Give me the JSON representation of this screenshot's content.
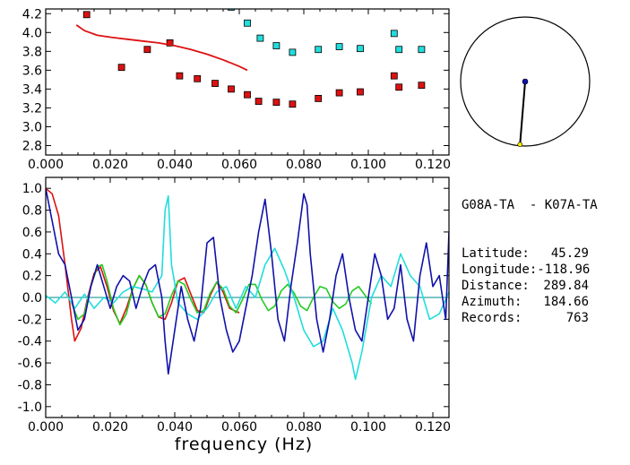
{
  "colors": {
    "red": "#dd1111",
    "cyan": "#22dddd",
    "blue": "#1111aa",
    "green": "#22cc22",
    "zero_line": "#008888"
  },
  "info": {
    "pair": "G08A-TA  - K07A-TA",
    "rows": [
      {
        "label": "Latitude:",
        "value": "45.29"
      },
      {
        "label": "Longitude:",
        "value": "-118.96"
      },
      {
        "label": "Distance:",
        "value": "289.84"
      },
      {
        "label": "Azimuth:",
        "value": "184.66"
      },
      {
        "label": "Records:",
        "value": "763"
      }
    ]
  },
  "azimuth_dial": {
    "azimuth_deg": 184.66,
    "distance_fraction": 0.98
  },
  "chart_data": [
    {
      "type": "scatter",
      "title": "",
      "xlabel": "",
      "ylabel": "",
      "xlim": [
        0.0,
        0.125
      ],
      "ylim": [
        2.7,
        4.25
      ],
      "x_ticks": [
        "0.000",
        "0.020",
        "0.040",
        "0.060",
        "0.080",
        "0.100",
        "0.120"
      ],
      "y_ticks": [
        "2.8",
        "3.0",
        "3.2",
        "3.4",
        "3.6",
        "3.8",
        "4.0",
        "4.2"
      ],
      "series": [
        {
          "color": "red",
          "marker": "square",
          "x": [
            0.0127,
            0.0235,
            0.0315,
            0.0385,
            0.0415,
            0.047,
            0.0525,
            0.0575,
            0.0625,
            0.066,
            0.0715,
            0.0765,
            0.0845,
            0.091,
            0.0975,
            0.108,
            0.1095,
            0.1165
          ],
          "y": [
            4.19,
            3.63,
            3.82,
            3.89,
            3.54,
            3.51,
            3.46,
            3.4,
            3.34,
            3.27,
            3.26,
            3.24,
            3.3,
            3.36,
            3.37,
            3.54,
            3.42,
            3.44
          ]
        },
        {
          "color": "cyan",
          "marker": "square",
          "x": [
            0.0575,
            0.0625,
            0.0665,
            0.0715,
            0.0765,
            0.0845,
            0.091,
            0.0975,
            0.108,
            0.1095,
            0.1165
          ],
          "y": [
            4.27,
            4.1,
            3.94,
            3.86,
            3.79,
            3.82,
            3.85,
            3.83,
            3.99,
            3.82,
            3.82
          ]
        },
        {
          "color": "red",
          "marker": "line",
          "x": [
            0.0095,
            0.012,
            0.016,
            0.02,
            0.025,
            0.03,
            0.035,
            0.04,
            0.045,
            0.05,
            0.055,
            0.06,
            0.0625
          ],
          "y": [
            4.08,
            4.02,
            3.97,
            3.95,
            3.93,
            3.91,
            3.89,
            3.86,
            3.82,
            3.77,
            3.71,
            3.64,
            3.6
          ]
        }
      ]
    },
    {
      "type": "line",
      "title": "",
      "xlabel": "frequency (Hz)",
      "ylabel": "",
      "xlim": [
        0.0,
        0.125
      ],
      "ylim": [
        -1.1,
        1.1
      ],
      "x_ticks": [
        "0.000",
        "0.020",
        "0.040",
        "0.060",
        "0.080",
        "0.100",
        "0.120"
      ],
      "y_ticks": [
        "1.0",
        "0.8",
        "0.6",
        "0.4",
        "0.2",
        "0.0",
        "-0.2",
        "-0.4",
        "-0.6",
        "-0.8",
        "-1.0"
      ],
      "series": [
        {
          "color": "red",
          "x": [
            0.0,
            0.002,
            0.004,
            0.006,
            0.008,
            0.009,
            0.011,
            0.013,
            0.015,
            0.017,
            0.019,
            0.021,
            0.023,
            0.025,
            0.027,
            0.029,
            0.031,
            0.033,
            0.035,
            0.037,
            0.039,
            0.041,
            0.043,
            0.045,
            0.047,
            0.049,
            0.051,
            0.053,
            0.055,
            0.057,
            0.06
          ],
          "y": [
            1.0,
            0.95,
            0.75,
            0.3,
            -0.2,
            -0.4,
            -0.28,
            0.0,
            0.22,
            0.28,
            0.1,
            -0.12,
            -0.24,
            -0.1,
            0.08,
            0.2,
            0.12,
            -0.05,
            -0.18,
            -0.2,
            -0.05,
            0.15,
            0.18,
            0.03,
            -0.12,
            -0.14,
            0.02,
            0.14,
            0.05,
            -0.1,
            -0.14
          ]
        },
        {
          "color": "green",
          "x": [
            0.008,
            0.01,
            0.012,
            0.014,
            0.016,
            0.0175,
            0.019,
            0.021,
            0.023,
            0.025,
            0.027,
            0.029,
            0.031,
            0.033,
            0.035,
            0.037,
            0.039,
            0.041,
            0.043,
            0.045,
            0.047,
            0.049,
            0.051,
            0.053,
            0.055,
            0.057,
            0.059,
            0.061,
            0.063,
            0.065,
            0.067,
            0.069,
            0.071,
            0.073,
            0.075,
            0.077,
            0.079,
            0.081,
            0.083,
            0.085,
            0.087,
            0.089,
            0.091,
            0.093,
            0.095,
            0.097,
            0.099,
            0.101
          ],
          "y": [
            -0.05,
            -0.2,
            -0.15,
            0.1,
            0.28,
            0.3,
            0.15,
            -0.1,
            -0.25,
            -0.15,
            0.08,
            0.2,
            0.12,
            -0.05,
            -0.18,
            -0.15,
            0.02,
            0.15,
            0.12,
            -0.02,
            -0.14,
            -0.12,
            0.04,
            0.14,
            0.08,
            -0.08,
            -0.14,
            -0.02,
            0.12,
            0.12,
            -0.02,
            -0.12,
            -0.08,
            0.06,
            0.12,
            0.04,
            -0.08,
            -0.12,
            0.0,
            0.1,
            0.08,
            -0.04,
            -0.1,
            -0.06,
            0.06,
            0.1,
            0.02,
            -0.06
          ]
        },
        {
          "color": "cyan",
          "x": [
            0.0,
            0.003,
            0.006,
            0.009,
            0.012,
            0.015,
            0.018,
            0.021,
            0.024,
            0.027,
            0.03,
            0.033,
            0.036,
            0.037,
            0.038,
            0.039,
            0.041,
            0.044,
            0.047,
            0.05,
            0.053,
            0.056,
            0.059,
            0.062,
            0.065,
            0.068,
            0.071,
            0.074,
            0.077,
            0.08,
            0.083,
            0.086,
            0.089,
            0.092,
            0.095,
            0.096,
            0.098,
            0.101,
            0.104,
            0.107,
            0.11,
            0.113,
            0.116,
            0.119,
            0.122,
            0.125
          ],
          "y": [
            0.02,
            -0.05,
            0.05,
            -0.1,
            0.03,
            -0.1,
            0.0,
            -0.05,
            0.05,
            0.1,
            0.08,
            0.05,
            0.2,
            0.8,
            0.93,
            0.3,
            -0.05,
            -0.15,
            -0.2,
            -0.1,
            0.05,
            0.1,
            -0.1,
            0.1,
            0.0,
            0.3,
            0.45,
            0.25,
            0.0,
            -0.3,
            -0.45,
            -0.4,
            -0.1,
            -0.3,
            -0.6,
            -0.75,
            -0.5,
            0.0,
            0.2,
            0.1,
            0.4,
            0.2,
            0.1,
            -0.2,
            -0.15,
            0.05
          ]
        },
        {
          "color": "blue",
          "x": [
            0.0,
            0.002,
            0.004,
            0.006,
            0.008,
            0.01,
            0.012,
            0.014,
            0.016,
            0.018,
            0.02,
            0.022,
            0.024,
            0.026,
            0.028,
            0.03,
            0.032,
            0.034,
            0.036,
            0.037,
            0.038,
            0.04,
            0.042,
            0.044,
            0.046,
            0.048,
            0.05,
            0.052,
            0.054,
            0.056,
            0.058,
            0.06,
            0.062,
            0.064,
            0.066,
            0.068,
            0.07,
            0.072,
            0.074,
            0.076,
            0.078,
            0.08,
            0.081,
            0.082,
            0.084,
            0.086,
            0.088,
            0.09,
            0.092,
            0.094,
            0.096,
            0.098,
            0.1,
            0.102,
            0.104,
            0.106,
            0.108,
            0.11,
            0.112,
            0.114,
            0.116,
            0.118,
            0.12,
            0.122,
            0.124,
            0.125
          ],
          "y": [
            1.0,
            0.7,
            0.4,
            0.3,
            0.0,
            -0.3,
            -0.2,
            0.1,
            0.3,
            0.1,
            -0.1,
            0.1,
            0.2,
            0.15,
            -0.1,
            0.1,
            0.25,
            0.3,
            0.0,
            -0.4,
            -0.7,
            -0.3,
            0.1,
            -0.2,
            -0.4,
            -0.1,
            0.5,
            0.55,
            0.0,
            -0.3,
            -0.5,
            -0.4,
            -0.1,
            0.2,
            0.6,
            0.9,
            0.4,
            -0.2,
            -0.4,
            0.1,
            0.5,
            0.95,
            0.85,
            0.4,
            -0.2,
            -0.5,
            -0.2,
            0.2,
            0.4,
            0.0,
            -0.3,
            -0.4,
            0.0,
            0.4,
            0.2,
            -0.2,
            -0.1,
            0.3,
            -0.2,
            -0.4,
            0.2,
            0.5,
            0.1,
            0.2,
            -0.2,
            0.6
          ]
        }
      ]
    }
  ]
}
